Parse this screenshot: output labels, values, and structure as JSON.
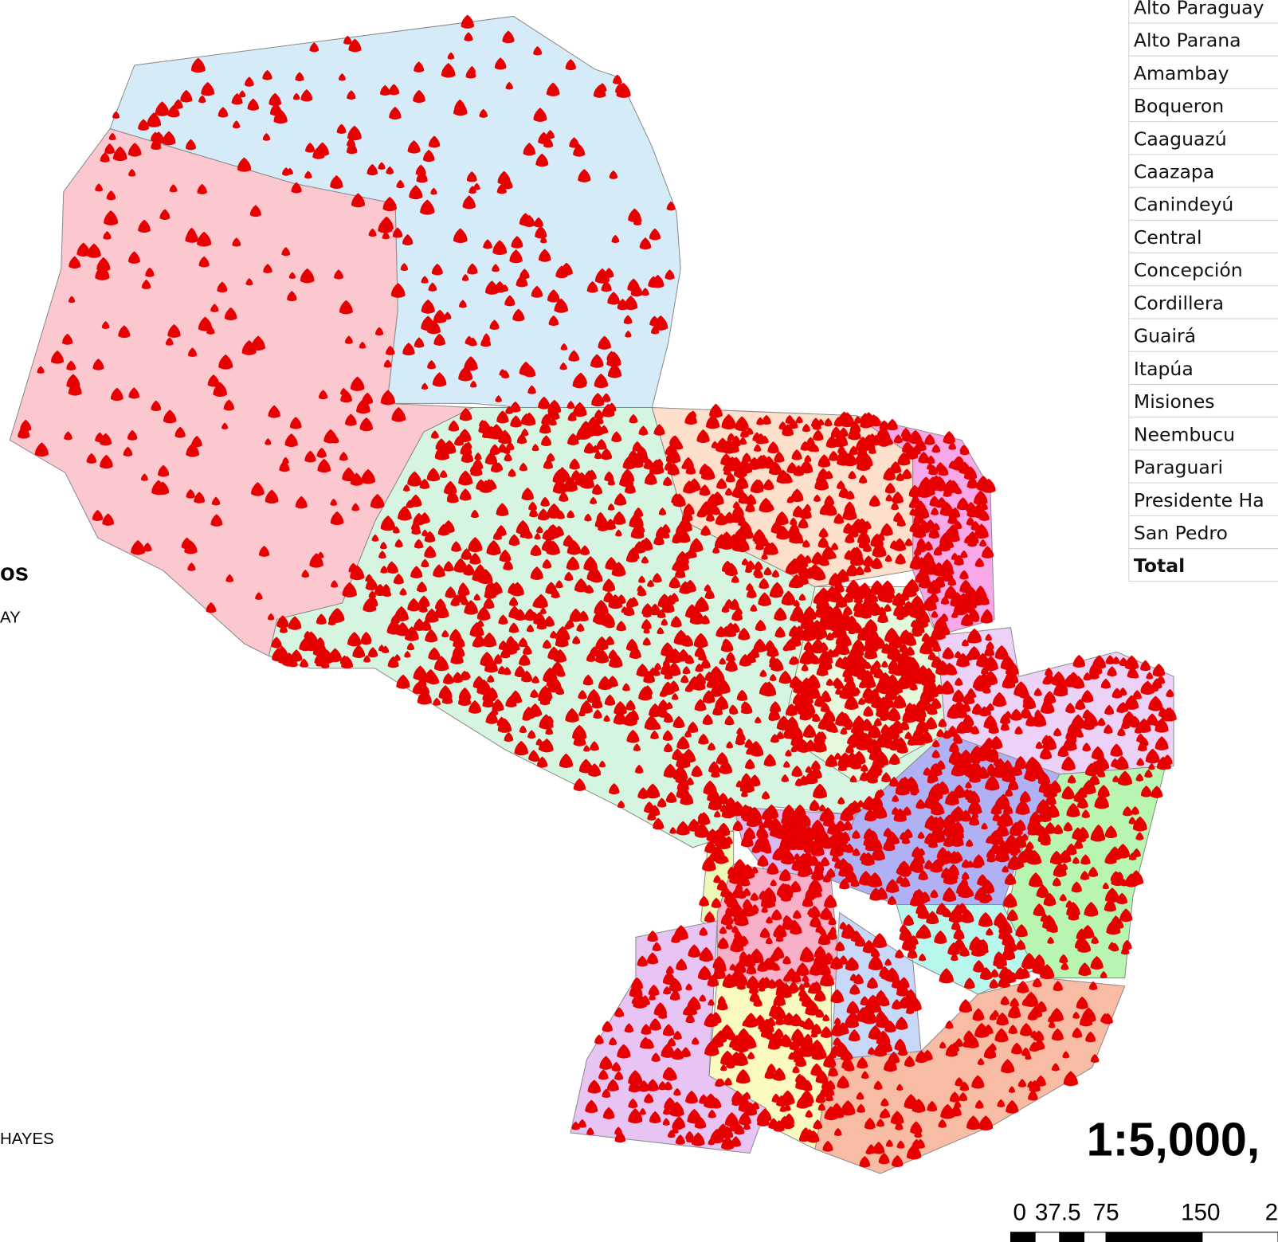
{
  "legend_table": {
    "rows": [
      "Alto Paraguay",
      "Alto Parana",
      "Amambay",
      "Boqueron",
      "Caaguazú",
      "Caazapa",
      "Canindeyú",
      "Central",
      "Concepción",
      "Cordillera",
      "Guairá",
      "Itapúa",
      "Misiones",
      "Neembucu",
      "Paraguari",
      "Presidente Ha",
      "San Pedro"
    ],
    "total": "Total"
  },
  "side_labels": {
    "title_fragment": "os",
    "country_fragment": "AY",
    "hayes_fragment": "HAYES"
  },
  "scale": {
    "ratio": "1:5,000,",
    "ticks": [
      "0",
      "37.5",
      "75",
      "150",
      "2"
    ]
  }
}
